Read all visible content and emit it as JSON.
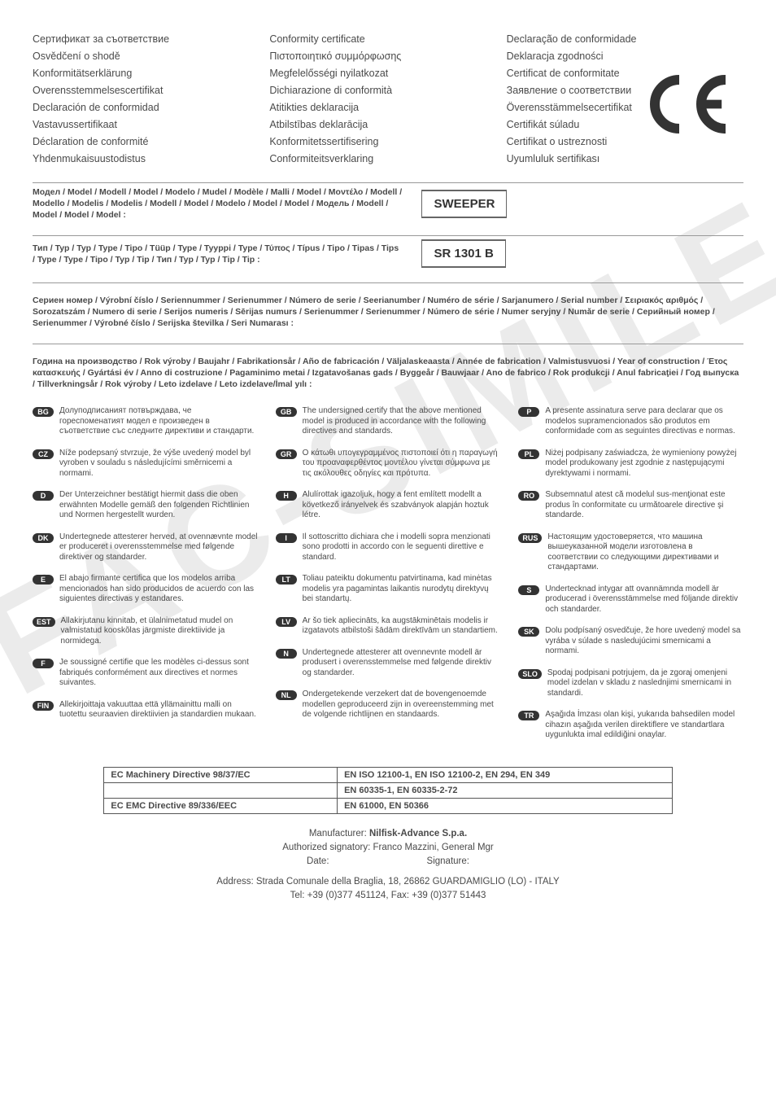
{
  "title_columns": [
    [
      "Сертификат за съответствие",
      "Osvědčení o shodě",
      "Konformitätserklärung",
      "Overensstemmelsescertifikat",
      "Declaración de conformidad",
      "Vastavussertifikaat",
      "Déclaration de conformité",
      "Yhdenmukaisuustodistus"
    ],
    [
      "Conformity certificate",
      "Πιστοποιητικό συμμόρφωσης",
      "Megfelelősségi nyilatkozat",
      "Dichiarazione di conformità",
      "Atitikties deklaracija",
      "Atbilstības deklarācija",
      "Konformitetssertifisering",
      "Conformiteitsverklaring"
    ],
    [
      "Declaração de conformidade",
      "Deklaracja zgodności",
      "Certificat de conformitate",
      "Заявление о соответствии",
      "Överensstämmelsecertifikat",
      "Certifikát súladu",
      "Certifikat o ustreznosti",
      "Uyumluluk sertifikası"
    ]
  ],
  "model_label": "Модел / Model / Modell / Model / Modelo / Mudel / Modèle / Malli / Model / Μοντέλο / Modell / Modello / Modelis / Modelis / Modell / Model / Modelo / Model / Model / Модель / Modell / Model / Model / Model :",
  "model_value": "SWEEPER",
  "type_label": "Тип / Typ / Typ / Type / Tipo / Tüüp / Type / Tyyppi / Type / Τύπος / Típus / Tipo / Tipas / Tips / Type / Type / Tipo / Typ / Tip / Тип / Typ / Typ / Tip / Tip :",
  "type_value": "SR 1301 B",
  "serial_label": "Сериен номер / Výrobní číslo / Seriennummer / Serienummer / Número de serie / Seerianumber / Numéro de série / Sarjanumero / Serial number / Σειριακός αριθμός / Sorozatszám / Numero di serie / Serijos numeris / Sērijas numurs / Serienummer / Serienummer / Número de série / Numer seryjny / Număr de serie / Серийный номер / Serienummer / Výrobné číslo / Serijska številka / Seri Numarası :",
  "year_label": "Година на производство / Rok výroby / Baujahr / Fabrikationsår / Año de fabricación / Väljalaskeaasta / Année de fabrication / Valmistusvuosi / Year of construction / Έτος κατασκευής / Gyártási év / Anno di costruzione / Pagaminimo metai / Izgatavošanas gads / Byggeår / Bauwjaar / Ano de fabrico / Rok produkcji / Anul fabricaţiei / Год выпуска / Tillverkningsår / Rok výroby / Leto izdelave / Leto izdelave/İmal yılı :",
  "statements": {
    "col1": [
      {
        "code": "BG",
        "text": "Долуподписаният потвърждава, че гореспоменатият модел е произведен в съответствие със следните директиви и стандарти."
      },
      {
        "code": "CZ",
        "text": "Níže podepsaný stvrzuje, že výše uvedený model byl vyroben v souladu s následujícími směrnicemi a normami."
      },
      {
        "code": "D",
        "text": "Der Unterzeichner bestätigt hiermit dass die oben erwähnten Modelle gemäß den folgenden Richtlinien und Normen hergestellt wurden."
      },
      {
        "code": "DK",
        "text": "Undertegnede attesterer herved, at ovennævnte model er produceret i overensstemmelse med følgende direktiver og standarder."
      },
      {
        "code": "E",
        "text": "El abajo firmante certifica que los modelos arriba mencionados han sido producidos de acuerdo con las siguientes directivas y estandares."
      },
      {
        "code": "EST",
        "text": "Allakirjutanu kinnitab, et ülalnimetatud mudel on valmistatud kooskõlas järgmiste direktiivide ja normidega."
      },
      {
        "code": "F",
        "text": "Je soussigné certifie que les modèles ci-dessus sont fabriqués conformément aux directives et normes suivantes."
      },
      {
        "code": "FIN",
        "text": "Allekirjoittaja vakuuttaa että yllämainittu malli on tuotettu seuraavien direktiivien ja standardien mukaan."
      }
    ],
    "col2": [
      {
        "code": "GB",
        "text": "The undersigned certify that the above mentioned model is produced in accordance with the following directives and standards."
      },
      {
        "code": "GR",
        "text": "Ο κάτωθι υπογεγραμμένος πιστοποιεί ότι η παραγωγή του προαναφερθέντος μοντέλου γίνεται σύμφωνα με τις ακόλουθες οδηγίες και πρότυπα."
      },
      {
        "code": "H",
        "text": "Alulírottak igazoljuk, hogy a fent említett modellt a következő irányelvek és szabványok alapján hoztuk létre."
      },
      {
        "code": "I",
        "text": "Il sottoscritto dichiara che i modelli sopra menzionati sono prodotti in accordo con le seguenti direttive e standard."
      },
      {
        "code": "LT",
        "text": "Toliau pateiktu dokumentu patvirtinama, kad minėtas modelis yra pagamintas laikantis nurodytų direktyvų bei standartų."
      },
      {
        "code": "LV",
        "text": "Ar šo tiek apliecināts, ka augstākminētais modelis ir izgatavots atbilstoši šādām direktīvām un standartiem."
      },
      {
        "code": "N",
        "text": "Undertegnede attesterer att ovennevnte modell är produsert i overensstemmelse med følgende direktiv og standarder."
      },
      {
        "code": "NL",
        "text": "Ondergetekende verzekert dat de bovengenoemde modellen geproduceerd zijn in overeenstemming met de volgende richtlijnen en standaards."
      }
    ],
    "col3": [
      {
        "code": "P",
        "text": "A presente assinatura serve para declarar que os modelos supramencionados são produtos em conformidade com as seguintes directivas e normas."
      },
      {
        "code": "PL",
        "text": "Niżej podpisany zaświadcza, że wymieniony powyżej model produkowany jest zgodnie z następującymi dyrektywami i normami."
      },
      {
        "code": "RO",
        "text": "Subsemnatul atest că modelul sus-menţionat este produs în conformitate cu următoarele directive şi standarde."
      },
      {
        "code": "RUS",
        "text": "Настоящим удостоверяется, что машина вышеуказанной модели изготовлена в соответствии со следующими директивами и стандартами."
      },
      {
        "code": "S",
        "text": "Undertecknad intygar att ovannämnda modell är producerad i överensstämmelse med följande direktiv och standarder."
      },
      {
        "code": "SK",
        "text": "Dolu podpísaný osvedčuje, že hore uvedený model sa vyrába v súlade s nasledujúcimi smernicami a normami."
      },
      {
        "code": "SLO",
        "text": "Spodaj podpisani potrjujem, da je zgoraj omenjeni model izdelan v skladu z naslednjimi smernicami in standardi."
      },
      {
        "code": "TR",
        "text": "Aşağıda İmzası olan kişi, yukarıda bahsedilen model cihazın aşağıda verilen direktiflere ve standartlara uygunlukta imal edildiğini onaylar."
      }
    ]
  },
  "directives_table": [
    [
      "EC Machinery Directive 98/37/EC",
      "EN ISO 12100-1, EN ISO 12100-2, EN 294, EN 349"
    ],
    [
      "",
      "EN 60335-1, EN 60335-2-72"
    ],
    [
      "EC EMC Directive 89/336/EEC",
      "EN 61000, EN 50366"
    ]
  ],
  "footer": {
    "manufacturer_label": "Manufacturer: ",
    "manufacturer_value": "Nilfisk-Advance S.p.a.",
    "signatory": "Authorized signatory: Franco Mazzini, General Mgr",
    "date_label": "Date:",
    "signature_label": "Signature:",
    "address": "Address: Strada Comunale della Braglia, 18, 26862 GUARDAMIGLIO (LO) - ITALY",
    "tel": "Tel: +39 (0)377 451124, Fax: +39 (0)377 51443"
  }
}
